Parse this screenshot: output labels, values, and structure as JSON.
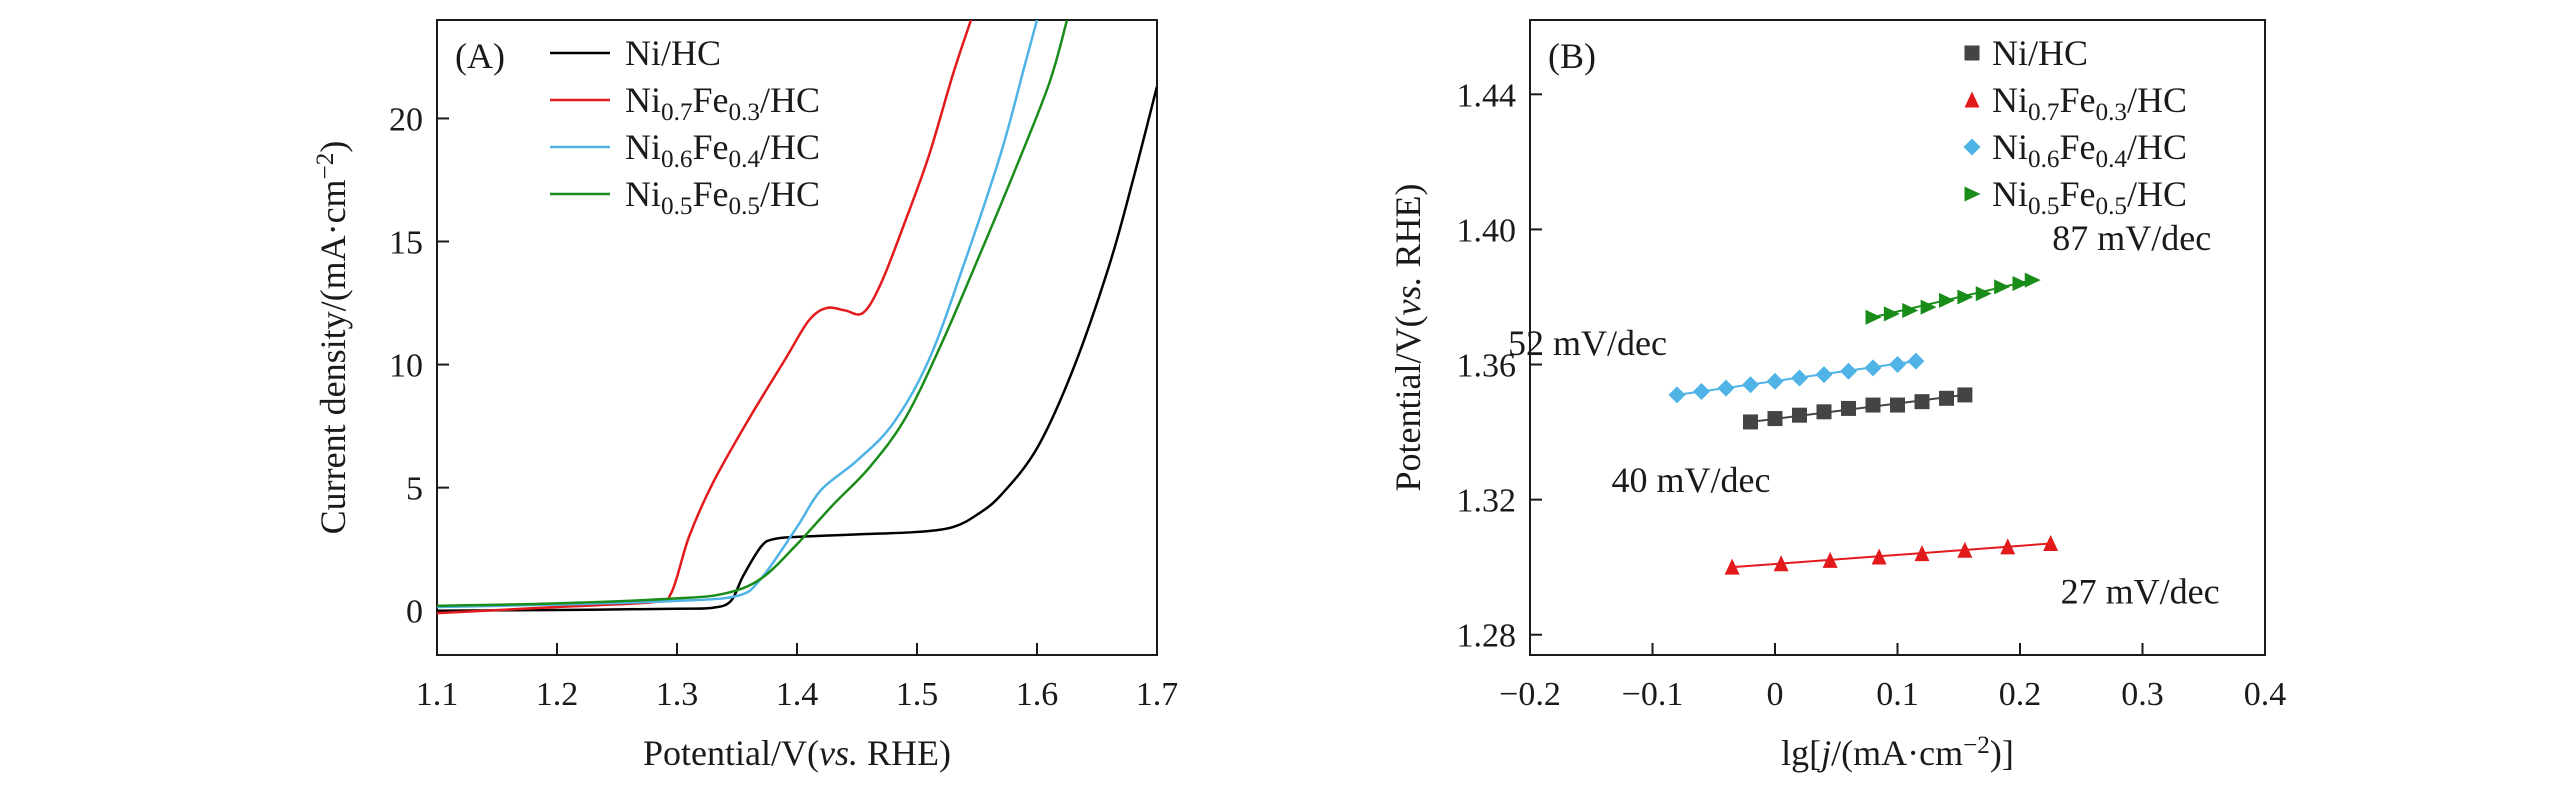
{
  "chart_data": [
    {
      "type": "line",
      "panel_label": "(A)",
      "xlabel": "Potential/V(vs. RHE)",
      "ylabel": "Current density/(mA·cm⁻²)",
      "xlim": [
        1.1,
        1.7
      ],
      "ylim": [
        -1.8,
        24
      ],
      "xticks": [
        1.1,
        1.2,
        1.3,
        1.4,
        1.5,
        1.6,
        1.7
      ],
      "yticks": [
        0,
        5,
        10,
        15,
        20
      ],
      "legend_position": "top-left",
      "series": [
        {
          "name": "Ni/HC",
          "color": "#000000",
          "points": [
            [
              1.1,
              0.0
            ],
            [
              1.2,
              0.03
            ],
            [
              1.3,
              0.08
            ],
            [
              1.33,
              0.12
            ],
            [
              1.345,
              0.4
            ],
            [
              1.355,
              1.4
            ],
            [
              1.37,
              2.6
            ],
            [
              1.38,
              2.9
            ],
            [
              1.4,
              3.0
            ],
            [
              1.45,
              3.1
            ],
            [
              1.5,
              3.2
            ],
            [
              1.53,
              3.4
            ],
            [
              1.55,
              3.9
            ],
            [
              1.57,
              4.7
            ],
            [
              1.6,
              6.6
            ],
            [
              1.63,
              9.8
            ],
            [
              1.66,
              14.0
            ],
            [
              1.68,
              17.5
            ],
            [
              1.7,
              21.3
            ]
          ]
        },
        {
          "name": "Ni0.7Fe0.3/HC",
          "color": "#e31a1c",
          "points": [
            [
              1.1,
              -0.1
            ],
            [
              1.2,
              0.15
            ],
            [
              1.28,
              0.35
            ],
            [
              1.295,
              0.7
            ],
            [
              1.31,
              3.0
            ],
            [
              1.33,
              5.2
            ],
            [
              1.36,
              7.8
            ],
            [
              1.39,
              10.2
            ],
            [
              1.41,
              11.8
            ],
            [
              1.425,
              12.3
            ],
            [
              1.44,
              12.2
            ],
            [
              1.455,
              12.1
            ],
            [
              1.47,
              13.3
            ],
            [
              1.49,
              15.8
            ],
            [
              1.51,
              18.5
            ],
            [
              1.53,
              21.8
            ],
            [
              1.545,
              24.0
            ]
          ]
        },
        {
          "name": "Ni0.6Fe0.4/HC",
          "color": "#4fb3e6",
          "points": [
            [
              1.1,
              0.15
            ],
            [
              1.2,
              0.25
            ],
            [
              1.3,
              0.4
            ],
            [
              1.35,
              0.6
            ],
            [
              1.37,
              1.3
            ],
            [
              1.4,
              3.4
            ],
            [
              1.42,
              4.9
            ],
            [
              1.45,
              6.1
            ],
            [
              1.48,
              7.6
            ],
            [
              1.51,
              10.2
            ],
            [
              1.54,
              14.2
            ],
            [
              1.57,
              18.6
            ],
            [
              1.59,
              22.2
            ],
            [
              1.6,
              24.0
            ]
          ]
        },
        {
          "name": "Ni0.5Fe0.5/HC",
          "color": "#1a8c1a",
          "points": [
            [
              1.1,
              0.2
            ],
            [
              1.2,
              0.3
            ],
            [
              1.3,
              0.5
            ],
            [
              1.34,
              0.7
            ],
            [
              1.37,
              1.3
            ],
            [
              1.4,
              2.7
            ],
            [
              1.43,
              4.3
            ],
            [
              1.46,
              5.8
            ],
            [
              1.49,
              7.8
            ],
            [
              1.52,
              10.8
            ],
            [
              1.55,
              14.2
            ],
            [
              1.58,
              17.7
            ],
            [
              1.61,
              21.4
            ],
            [
              1.625,
              24.0
            ]
          ]
        }
      ]
    },
    {
      "type": "scatter",
      "panel_label": "(B)",
      "xlabel": "lg[j/(mA·cm⁻²)]",
      "ylabel": "Potential/V(vs. RHE)",
      "xlim": [
        -0.2,
        0.4
      ],
      "ylim": [
        1.274,
        1.462
      ],
      "xticks": [
        -0.2,
        -0.1,
        0,
        0.1,
        0.2,
        0.3,
        0.4
      ],
      "xtick_labels": [
        "−0.2",
        "−0.1",
        "0",
        "0.1",
        "0.2",
        "0.3",
        "0.4"
      ],
      "yticks": [
        1.28,
        1.32,
        1.36,
        1.4,
        1.44
      ],
      "ytick_labels": [
        "1.28",
        "1.32",
        "1.36",
        "1.40",
        "1.44"
      ],
      "legend_position": "top-right",
      "series": [
        {
          "name": "Ni/HC",
          "color": "#444444",
          "marker": "square",
          "slope_label": "40 mV/dec",
          "fit": [
            [
              -0.02,
              1.343
            ],
            [
              0.155,
              1.351
            ]
          ],
          "points": [
            [
              -0.02,
              1.343
            ],
            [
              0.0,
              1.344
            ],
            [
              0.02,
              1.345
            ],
            [
              0.04,
              1.346
            ],
            [
              0.06,
              1.347
            ],
            [
              0.08,
              1.348
            ],
            [
              0.1,
              1.348
            ],
            [
              0.12,
              1.349
            ],
            [
              0.14,
              1.35
            ],
            [
              0.155,
              1.351
            ]
          ]
        },
        {
          "name": "Ni0.7Fe0.3/HC",
          "color": "#e31a1c",
          "marker": "triangle-up",
          "slope_label": "27 mV/dec",
          "fit": [
            [
              -0.035,
              1.3
            ],
            [
              0.225,
              1.307
            ]
          ],
          "points": [
            [
              -0.035,
              1.3
            ],
            [
              0.005,
              1.301
            ],
            [
              0.045,
              1.302
            ],
            [
              0.085,
              1.303
            ],
            [
              0.12,
              1.304
            ],
            [
              0.155,
              1.305
            ],
            [
              0.19,
              1.306
            ],
            [
              0.225,
              1.307
            ]
          ]
        },
        {
          "name": "Ni0.6Fe0.4/HC",
          "color": "#4fb3e6",
          "marker": "diamond",
          "slope_label": "52 mV/dec",
          "fit": [
            [
              -0.08,
              1.351
            ],
            [
              0.115,
              1.361
            ]
          ],
          "points": [
            [
              -0.08,
              1.351
            ],
            [
              -0.06,
              1.352
            ],
            [
              -0.04,
              1.353
            ],
            [
              -0.02,
              1.354
            ],
            [
              0.0,
              1.355
            ],
            [
              0.02,
              1.356
            ],
            [
              0.04,
              1.357
            ],
            [
              0.06,
              1.358
            ],
            [
              0.08,
              1.359
            ],
            [
              0.1,
              1.36
            ],
            [
              0.115,
              1.361
            ]
          ]
        },
        {
          "name": "Ni0.5Fe0.5/HC",
          "color": "#1a8c1a",
          "marker": "triangle-right",
          "slope_label": "87 mV/dec",
          "fit": [
            [
              0.08,
              1.374
            ],
            [
              0.21,
              1.385
            ]
          ],
          "points": [
            [
              0.08,
              1.374
            ],
            [
              0.095,
              1.375
            ],
            [
              0.11,
              1.376
            ],
            [
              0.125,
              1.377
            ],
            [
              0.14,
              1.379
            ],
            [
              0.155,
              1.38
            ],
            [
              0.17,
              1.381
            ],
            [
              0.185,
              1.383
            ],
            [
              0.2,
              1.384
            ],
            [
              0.21,
              1.385
            ]
          ]
        }
      ]
    }
  ]
}
